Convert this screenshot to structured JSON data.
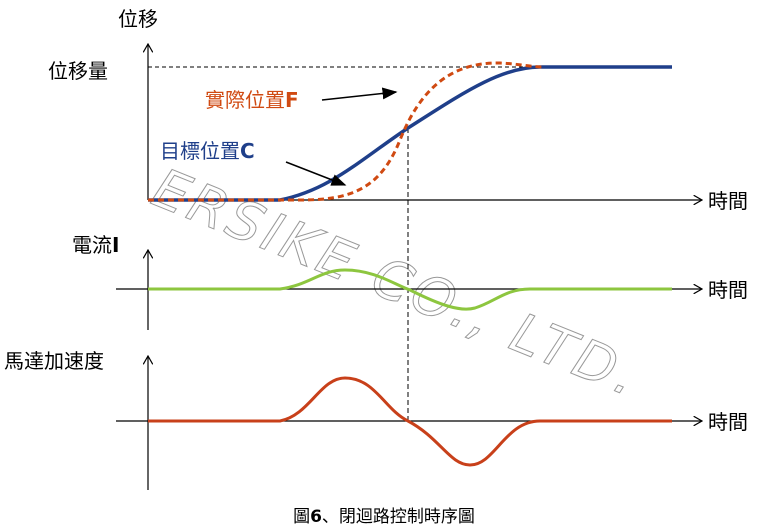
{
  "axes": {
    "position": {
      "label": "位移",
      "level_label": "位移量",
      "time_label": "時間"
    },
    "current": {
      "label_text": "電流",
      "label_suffix": "I",
      "time_label": "時間"
    },
    "acceleration": {
      "label": "馬達加速度",
      "time_label": "時間"
    }
  },
  "curves": {
    "actual": {
      "text": "實際位置",
      "suffix": "F"
    },
    "target": {
      "text": "目標位置",
      "suffix": "C"
    }
  },
  "watermark": "ERSIKE CO., LTD.",
  "caption": {
    "prefix": "圖",
    "number": "6",
    "text": "、閉迴路控制時序圖"
  }
}
